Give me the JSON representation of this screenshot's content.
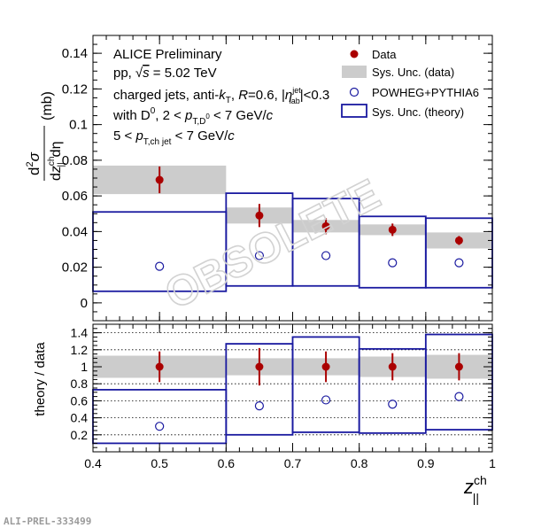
{
  "figure_id": "ALI-PREL-333499",
  "watermark": "OBSOLETE",
  "annotations": {
    "line1": "ALICE Preliminary",
    "line2_a": "pp,",
    "line2_sqrt": "√",
    "line2_s": "s",
    "line2_b": " = 5.02 TeV",
    "line3_a": "charged jets, anti-",
    "line3_k": "k",
    "line3_ksub": "T",
    "line3_b": ", ",
    "line3_R": "R",
    "line3_c": "=0.6, |",
    "line3_eta": "η",
    "line3_etasup": "jet",
    "line3_etasub": "lab",
    "line3_d": "|<0.3",
    "line4_a": "with D",
    "line4_sup": "0",
    "line4_b": ", 2 < ",
    "line4_p": "p",
    "line4_psub": "T,D",
    "line4_psubsup": "0",
    "line4_c": " < 7 GeV/",
    "line4_cc": "c",
    "line5_a": "5 < ",
    "line5_p": "p",
    "line5_psub": "T,ch jet",
    "line5_b": " < 7 GeV/",
    "line5_cc": "c"
  },
  "legend": {
    "data": "Data",
    "sys_data": "Sys. Unc. (data)",
    "theory": "POWHEG+PYTHIA6",
    "sys_theory": "Sys. Unc. (theory)"
  },
  "colors": {
    "data": "#aa0000",
    "theory": "#1a1aa0",
    "sys_band": "#cccccc",
    "axis": "#000000",
    "watermark": "#d2d2d2"
  },
  "chart_data": [
    {
      "type": "scatter",
      "panel": "top",
      "ylabel_d": "d",
      "ylabel_sup2": "2",
      "ylabel_sigma": "σ",
      "ylabel_den_d": "d",
      "ylabel_den_z": "z",
      "ylabel_den_zsup": "ch",
      "ylabel_den_zsub": "||",
      "ylabel_den_eta": "dη",
      "ylabel_unit": "(mb)",
      "ylim": [
        -0.01,
        0.15
      ],
      "yticks": [
        0,
        0.02,
        0.04,
        0.06,
        0.08,
        0.1,
        0.12,
        0.14
      ],
      "ytick_labels": [
        "0",
        "0.02",
        "0.04",
        "0.06",
        "0.08",
        "0.1",
        "0.12",
        "0.14"
      ],
      "bins": [
        [
          0.4,
          0.6
        ],
        [
          0.6,
          0.7
        ],
        [
          0.7,
          0.8
        ],
        [
          0.8,
          0.9
        ],
        [
          0.9,
          1.0
        ]
      ],
      "data": {
        "x": [
          0.5,
          0.65,
          0.75,
          0.85,
          0.95
        ],
        "y": [
          0.069,
          0.049,
          0.043,
          0.041,
          0.035
        ],
        "stat_err": [
          0.0075,
          0.0065,
          0.0045,
          0.0035,
          0.0025
        ],
        "sys_low": [
          0.061,
          0.0445,
          0.0395,
          0.038,
          0.0305
        ],
        "sys_high": [
          0.077,
          0.0535,
          0.0465,
          0.044,
          0.0395
        ]
      },
      "theory": {
        "x": [
          0.5,
          0.65,
          0.75,
          0.85,
          0.95
        ],
        "y": [
          0.0205,
          0.0265,
          0.0265,
          0.0225,
          0.0225
        ],
        "sys_low": [
          0.0065,
          0.0095,
          0.0095,
          0.0085,
          0.0085
        ],
        "sys_high": [
          0.051,
          0.0615,
          0.0585,
          0.0485,
          0.0475
        ]
      }
    },
    {
      "type": "scatter",
      "panel": "ratio",
      "ylabel": "theory / data",
      "xlabel_z": "z",
      "xlabel_sup": "ch",
      "xlabel_sub": "||",
      "xlim": [
        0.4,
        1.0
      ],
      "xticks": [
        0.4,
        0.5,
        0.6,
        0.7,
        0.8,
        0.9,
        1.0
      ],
      "xtick_labels": [
        "0.4",
        "0.5",
        "0.6",
        "0.7",
        "0.8",
        "0.9",
        "1"
      ],
      "ylim": [
        0.0,
        1.5
      ],
      "yticks": [
        0.2,
        0.4,
        0.6,
        0.8,
        1.0,
        1.2,
        1.4
      ],
      "ytick_labels": [
        "0.2",
        "0.4",
        "0.6",
        "0.8",
        "1",
        "1.2",
        "1.4"
      ],
      "dotted_gridlines": [
        0.2,
        0.4,
        0.6,
        0.8,
        1.2,
        1.4
      ],
      "bins": [
        [
          0.4,
          0.6
        ],
        [
          0.6,
          0.7
        ],
        [
          0.7,
          0.8
        ],
        [
          0.8,
          0.9
        ],
        [
          0.9,
          1.0
        ]
      ],
      "data": {
        "x": [
          0.5,
          0.65,
          0.75,
          0.85,
          0.95
        ],
        "y": [
          1.0,
          1.0,
          1.0,
          1.0,
          1.0
        ],
        "stat_err": [
          0.18,
          0.22,
          0.18,
          0.16,
          0.16
        ],
        "sys_low": [
          0.87,
          0.9,
          0.9,
          0.88,
          0.86
        ],
        "sys_high": [
          1.13,
          1.1,
          1.1,
          1.12,
          1.14
        ]
      },
      "theory": {
        "x": [
          0.5,
          0.65,
          0.75,
          0.85,
          0.95
        ],
        "y": [
          0.3,
          0.54,
          0.61,
          0.56,
          0.65
        ],
        "sys_low": [
          0.1,
          0.2,
          0.23,
          0.22,
          0.26
        ],
        "sys_high": [
          0.73,
          1.27,
          1.35,
          1.21,
          1.38
        ]
      }
    }
  ]
}
